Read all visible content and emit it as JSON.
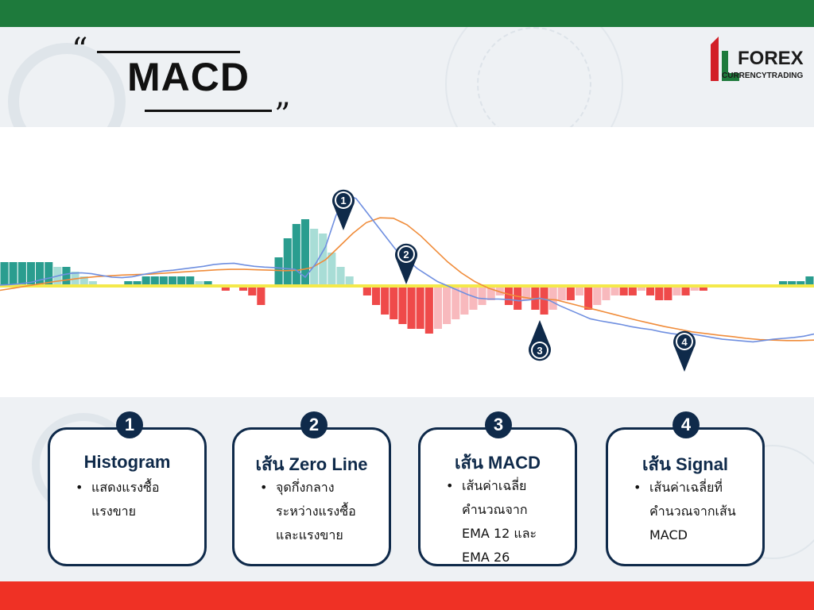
{
  "header": {
    "open_quote": "“",
    "close_quote": "”",
    "title": "MACD"
  },
  "logo": {
    "text": "FOREX",
    "subtitle": "CURRENCYTRADING",
    "colors": {
      "red": "#d21f26",
      "green": "#1e7a3c"
    }
  },
  "colors": {
    "top_bar": "#1e7a3c",
    "bottom_bar": "#ef3125",
    "card_border": "#0f2a4a",
    "hist_pos_dark": "#2a9d8f",
    "hist_pos_light": "#a8ddd6",
    "hist_neg_dark": "#ef4a4a",
    "hist_neg_light": "#f8b9bd",
    "zero_line": "#f4e94a",
    "macd_line": "#6f8fe0",
    "signal_line": "#f08c3a"
  },
  "markers": [
    "1",
    "2",
    "3",
    "4"
  ],
  "chart_data": {
    "type": "line",
    "histogram": [
      5,
      5,
      5,
      5,
      5,
      5,
      4,
      4,
      3,
      2,
      1,
      0,
      0,
      0,
      1,
      1,
      2,
      2,
      2,
      2,
      2,
      2,
      1,
      1,
      0,
      -1,
      0,
      -1,
      -2,
      -4,
      0,
      6,
      10,
      13,
      14,
      12,
      11,
      7,
      4,
      2,
      0,
      -2,
      -4,
      -6,
      -7,
      -8,
      -9,
      -9,
      -10,
      -9,
      -8,
      -7,
      -6,
      -5,
      -4,
      -3,
      -2,
      -4,
      -5,
      -3,
      -5,
      -6,
      -5,
      -3,
      -3,
      -2,
      -5,
      -4,
      -3,
      -2,
      -2,
      -2,
      -1,
      -2,
      -3,
      -3,
      -2,
      -2,
      -1,
      -1,
      0,
      0,
      0,
      0,
      0,
      0,
      0,
      0,
      1,
      1,
      1,
      2
    ],
    "macd": [
      0.2,
      0.3,
      0.5,
      0.8,
      1.4,
      1.9,
      2.5,
      2.9,
      3.0,
      2.8,
      2.4,
      2.0,
      1.9,
      2.1,
      2.6,
      3.0,
      3.4,
      3.6,
      3.9,
      4.2,
      4.5,
      4.9,
      5.1,
      5.2,
      4.8,
      4.5,
      4.3,
      4.2,
      4.0,
      3.8,
      2.0,
      5.0,
      9.0,
      16.0,
      21.0,
      20.0,
      17.0,
      14.0,
      11.0,
      8.0,
      6.0,
      4.0,
      2.5,
      1.0,
      0.0,
      -1.0,
      -2.0,
      -2.8,
      -3.0,
      -3.0,
      -3.1,
      -3.4,
      -3.2,
      -2.8,
      -3.3,
      -4.5,
      -5.5,
      -6.5,
      -7.5,
      -8.0,
      -8.4,
      -8.8,
      -9.3,
      -9.7,
      -10.0,
      -10.5,
      -10.9,
      -11.2,
      -11.0,
      -11.4,
      -11.8,
      -12.2,
      -12.4,
      -12.6,
      -12.8,
      -12.5,
      -12.2,
      -12.0,
      -11.8,
      -11.5,
      -11.0
    ],
    "signal": [
      -1.0,
      -0.5,
      0.0,
      0.5,
      1.0,
      1.4,
      1.8,
      2.1,
      2.3,
      2.5,
      2.6,
      2.7,
      2.9,
      3.1,
      3.3,
      3.5,
      3.7,
      3.8,
      3.8,
      3.7,
      3.6,
      3.5,
      3.6,
      4.2,
      6.0,
      9.0,
      12.0,
      14.5,
      15.6,
      15.5,
      14.0,
      11.5,
      8.5,
      5.5,
      3.0,
      1.0,
      -0.5,
      -1.5,
      -2.3,
      -2.8,
      -3.0,
      -3.2,
      -4.0,
      -4.8,
      -5.5,
      -6.3,
      -7.1,
      -7.9,
      -8.6,
      -9.3,
      -9.9,
      -10.5,
      -10.9,
      -11.3,
      -11.6,
      -12.0,
      -12.3,
      -12.4,
      -12.5,
      -12.5,
      -12.4
    ]
  },
  "cards": [
    {
      "number": "1",
      "title": "Histogram",
      "lines": [
        "แสดงแรงซื้อ",
        "แรงขาย"
      ]
    },
    {
      "number": "2",
      "title": "เส้น Zero Line",
      "lines": [
        "จุดกึ่งกลาง",
        "ระหว่างแรงซื้อ",
        "และแรงขาย"
      ]
    },
    {
      "number": "3",
      "title": "เส้น MACD",
      "lines": [
        "เส้นค่าเฉลี่ย",
        "คำนวณจาก",
        "EMA 12 และ",
        "EMA 26"
      ]
    },
    {
      "number": "4",
      "title": "เส้น Signal",
      "lines": [
        "เส้นค่าเฉลี่ยที่",
        "คำนวณจากเส้น",
        "MACD"
      ]
    }
  ]
}
